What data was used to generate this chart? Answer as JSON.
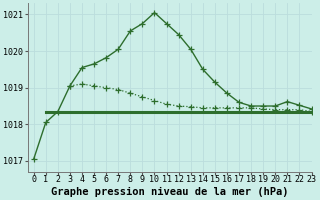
{
  "title": "Graphe pression niveau de la mer (hPa)",
  "bg_color": "#cceee8",
  "grid_color": "#bbdddd",
  "line_color": "#2d6e2d",
  "xlim": [
    -0.5,
    23
  ],
  "ylim": [
    1016.7,
    1021.3
  ],
  "yticks": [
    1017,
    1018,
    1019,
    1020,
    1021
  ],
  "xticks": [
    0,
    1,
    2,
    3,
    4,
    5,
    6,
    7,
    8,
    9,
    10,
    11,
    12,
    13,
    14,
    15,
    16,
    17,
    18,
    19,
    20,
    21,
    22,
    23
  ],
  "series1_x": [
    0,
    1,
    2,
    3,
    4,
    5,
    6,
    7,
    8,
    9,
    10,
    11,
    12,
    13,
    14,
    15,
    16,
    17,
    18,
    19,
    20,
    21,
    22,
    23
  ],
  "series1_y": [
    1017.05,
    1018.05,
    1018.35,
    1019.05,
    1019.55,
    1019.65,
    1019.82,
    1020.05,
    1020.55,
    1020.75,
    1021.05,
    1020.75,
    1020.45,
    1020.05,
    1019.5,
    1019.15,
    1018.85,
    1018.6,
    1018.5,
    1018.5,
    1018.5,
    1018.62,
    1018.52,
    1018.42
  ],
  "series2_x": [
    3,
    4,
    5,
    6,
    7,
    8,
    9,
    10,
    11,
    12,
    13,
    14,
    15,
    16,
    17,
    18,
    19,
    20,
    21,
    22,
    23
  ],
  "series2_y": [
    1019.05,
    1019.1,
    1019.05,
    1019.0,
    1018.95,
    1018.85,
    1018.75,
    1018.65,
    1018.55,
    1018.5,
    1018.48,
    1018.45,
    1018.45,
    1018.45,
    1018.45,
    1018.45,
    1018.42,
    1018.4,
    1018.4,
    1018.4,
    1018.35
  ],
  "series3_x": [
    1,
    2,
    3,
    4,
    5,
    6,
    7,
    8,
    9,
    10,
    11,
    12,
    13,
    14,
    15,
    16,
    17,
    18,
    19,
    20,
    21,
    22,
    23
  ],
  "series3_y": [
    1018.35,
    1018.35,
    1018.35,
    1018.35,
    1018.35,
    1018.35,
    1018.35,
    1018.35,
    1018.35,
    1018.35,
    1018.35,
    1018.35,
    1018.35,
    1018.35,
    1018.35,
    1018.35,
    1018.35,
    1018.35,
    1018.35,
    1018.35,
    1018.35,
    1018.35,
    1018.35
  ],
  "title_fontsize": 7.5,
  "tick_fontsize": 6,
  "marker_size": 4
}
